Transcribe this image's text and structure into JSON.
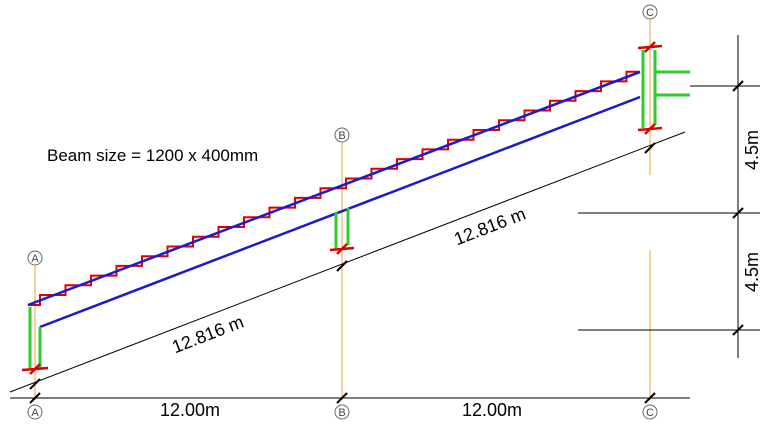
{
  "title": "Beam size = 1200 x 400mm",
  "grid_labels": {
    "top": [
      "A",
      "B",
      "C"
    ],
    "bottom": [
      "A",
      "B",
      "C"
    ]
  },
  "dimensions": {
    "horizontal": [
      "12.00m",
      "12.00m"
    ],
    "sloped": [
      "12.816 m",
      "12.816 m"
    ],
    "vertical": [
      "4.5m",
      "4.5m"
    ]
  }
}
